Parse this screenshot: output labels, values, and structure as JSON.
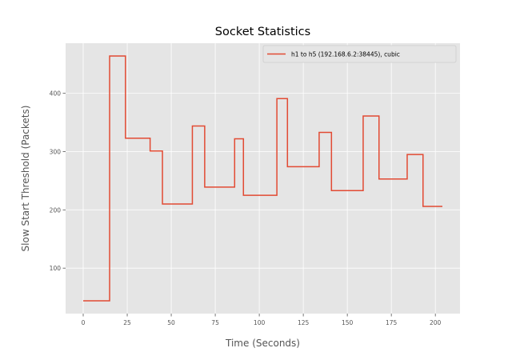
{
  "chart_data": {
    "type": "line",
    "title": "Socket Statistics",
    "xlabel": "Time (Seconds)",
    "ylabel": "Slow Start Threshold (Packets)",
    "xlim": [
      -10,
      214
    ],
    "ylim": [
      22,
      486
    ],
    "xticks": [
      0,
      25,
      50,
      75,
      100,
      125,
      150,
      175,
      200
    ],
    "yticks": [
      100,
      200,
      300,
      400
    ],
    "grid": true,
    "legend_position": "top-right",
    "series": [
      {
        "name": "h1 to h5 (192.168.6.2:38445), cubic",
        "color": "#E24A33",
        "step": true,
        "points": [
          [
            0,
            44
          ],
          [
            15,
            44
          ],
          [
            15,
            464
          ],
          [
            24,
            464
          ],
          [
            24,
            323
          ],
          [
            38,
            323
          ],
          [
            38,
            301
          ],
          [
            45,
            301
          ],
          [
            45,
            210
          ],
          [
            62,
            210
          ],
          [
            62,
            344
          ],
          [
            69,
            344
          ],
          [
            69,
            239
          ],
          [
            86,
            239
          ],
          [
            86,
            322
          ],
          [
            91,
            322
          ],
          [
            91,
            225
          ],
          [
            110,
            225
          ],
          [
            110,
            391
          ],
          [
            116,
            391
          ],
          [
            116,
            274
          ],
          [
            134,
            274
          ],
          [
            134,
            333
          ],
          [
            141,
            333
          ],
          [
            141,
            233
          ],
          [
            159,
            233
          ],
          [
            159,
            361
          ],
          [
            168,
            361
          ],
          [
            168,
            253
          ],
          [
            184,
            253
          ],
          [
            184,
            295
          ],
          [
            193,
            295
          ],
          [
            193,
            206
          ],
          [
            204,
            206
          ]
        ]
      }
    ]
  }
}
